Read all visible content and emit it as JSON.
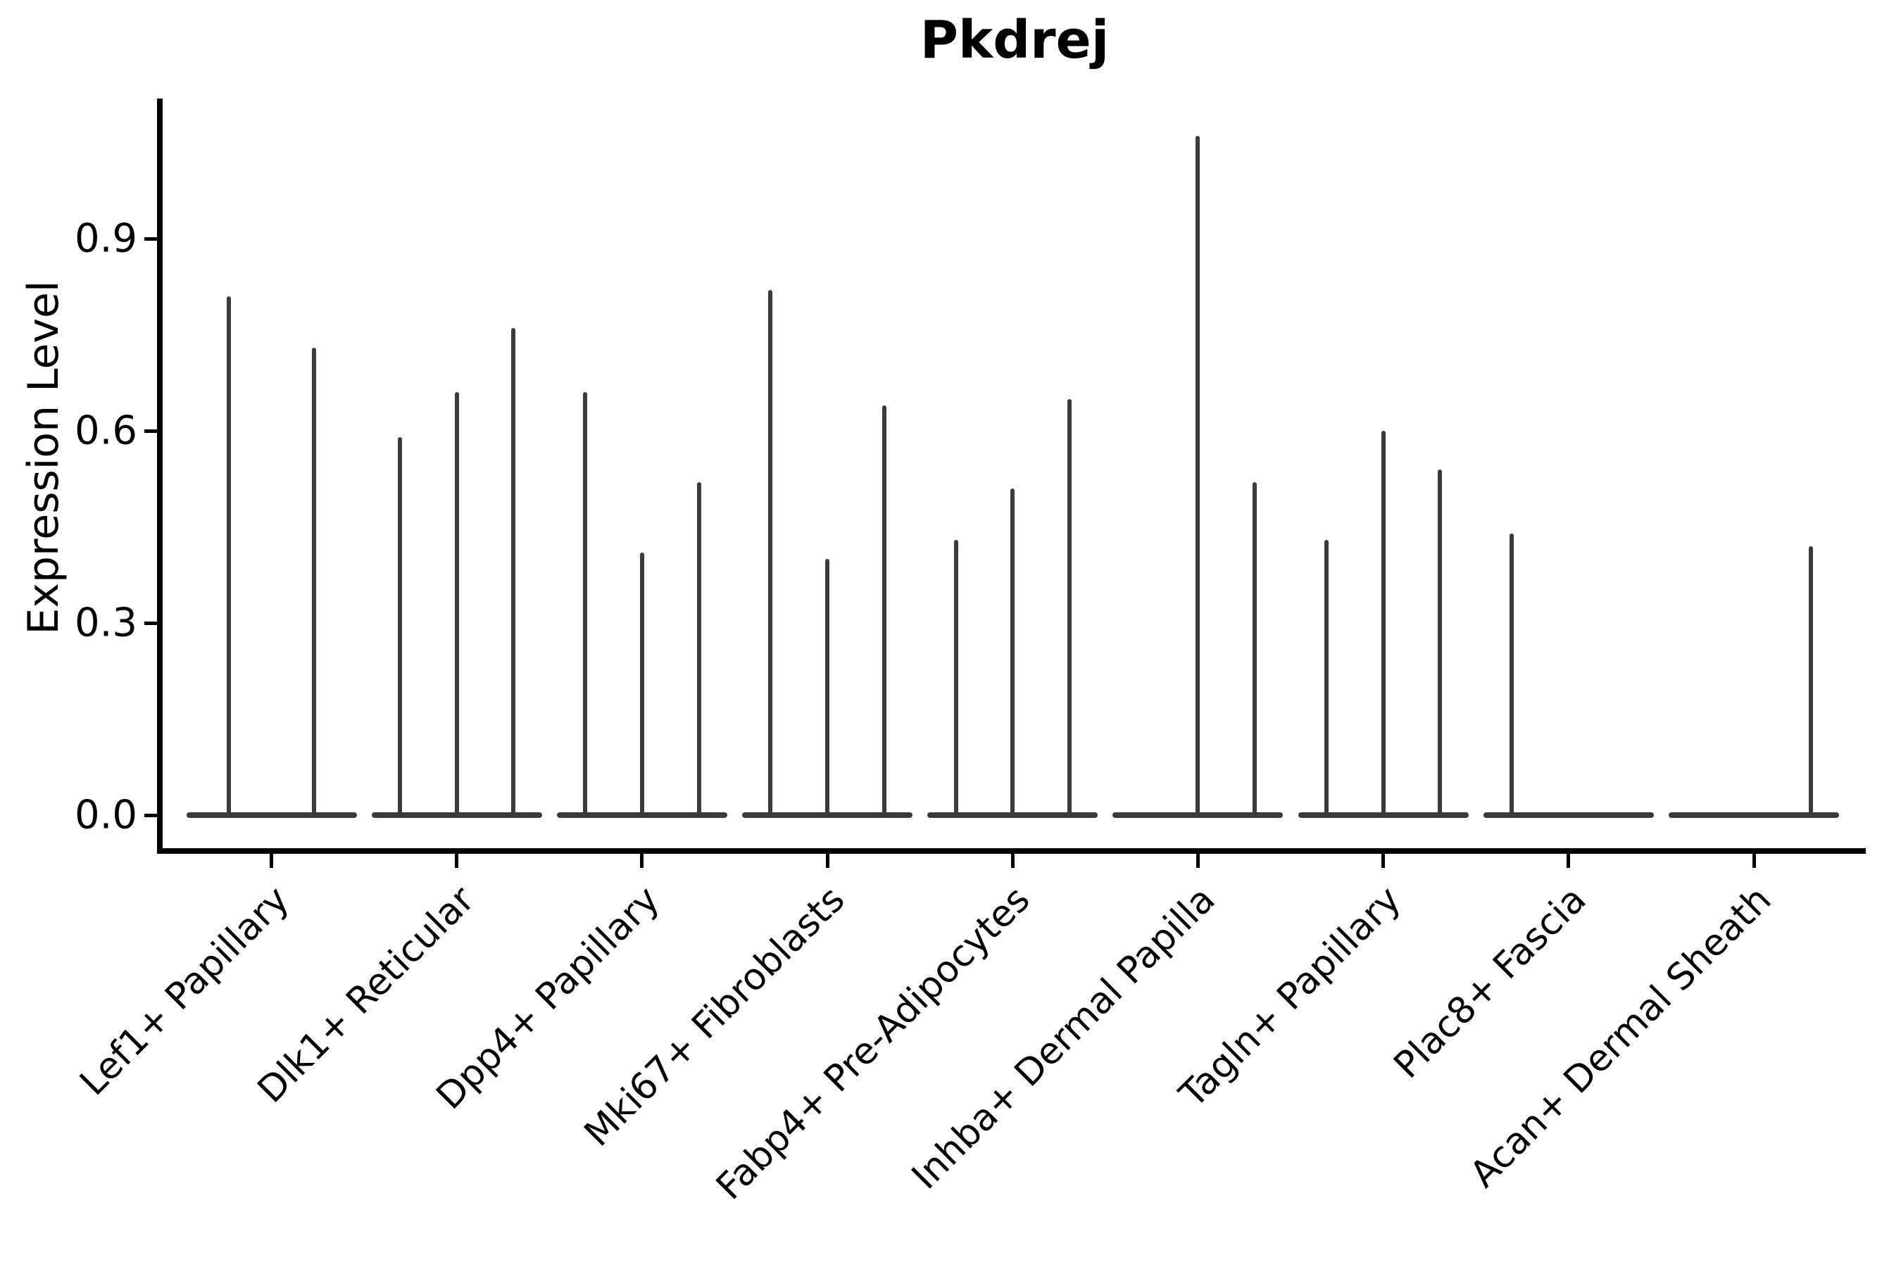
{
  "chart_data": {
    "type": "violin",
    "title": "Pkdrej",
    "ylabel": "Expression Level",
    "xlabel": "",
    "yticks": [
      "0.0",
      "0.3",
      "0.6",
      "0.9"
    ],
    "ytick_values": [
      0.0,
      0.3,
      0.6,
      0.9
    ],
    "ylim": [
      -0.05,
      1.12
    ],
    "grid": "off",
    "legend": "none",
    "violin_color": "#3a3a3a",
    "axis_color": "#000000",
    "categories": [
      "Lef1+ Papillary",
      "Dlk1+ Reticular",
      "Dpp4+ Papillary",
      "Mki67+ Fibroblasts",
      "Fabp4+ Pre-Adipocytes",
      "Inhba+ Dermal Papilla",
      "Tagln+ Papillary",
      "Plac8+ Fascia",
      "Acan+ Dermal Sheath"
    ],
    "series": [
      {
        "category": "Lef1+ Papillary",
        "sub_violin_max_expression": [
          0.81,
          0.73
        ]
      },
      {
        "category": "Dlk1+ Reticular",
        "sub_violin_max_expression": [
          0.59,
          0.66,
          0.76
        ]
      },
      {
        "category": "Dpp4+ Papillary",
        "sub_violin_max_expression": [
          0.66,
          0.41,
          0.52
        ]
      },
      {
        "category": "Mki67+ Fibroblasts",
        "sub_violin_max_expression": [
          0.82,
          0.4,
          0.64
        ]
      },
      {
        "category": "Fabp4+ Pre-Adipocytes",
        "sub_violin_max_expression": [
          0.43,
          0.51,
          0.65
        ]
      },
      {
        "category": "Inhba+ Dermal Papilla",
        "sub_violin_max_expression": [
          0.0,
          1.06,
          0.52
        ]
      },
      {
        "category": "Tagln+ Papillary",
        "sub_violin_max_expression": [
          0.43,
          0.6,
          0.54
        ]
      },
      {
        "category": "Plac8+ Fascia",
        "sub_violin_max_expression": [
          0.44,
          0.0,
          0.0
        ]
      },
      {
        "category": "Acan+ Dermal Sheath",
        "sub_violin_max_expression": [
          0.0,
          0.0,
          0.42
        ]
      }
    ]
  }
}
